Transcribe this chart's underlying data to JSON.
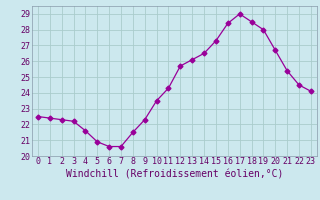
{
  "x": [
    0,
    1,
    2,
    3,
    4,
    5,
    6,
    7,
    8,
    9,
    10,
    11,
    12,
    13,
    14,
    15,
    16,
    17,
    18,
    19,
    20,
    21,
    22,
    23
  ],
  "y": [
    22.5,
    22.4,
    22.3,
    22.2,
    21.6,
    20.9,
    20.6,
    20.6,
    21.5,
    22.3,
    23.5,
    24.3,
    25.7,
    26.1,
    26.5,
    27.3,
    28.4,
    29.0,
    28.5,
    28.0,
    26.7,
    25.4,
    24.5,
    24.1
  ],
  "line_color": "#990099",
  "marker": "D",
  "markersize": 2.5,
  "bg_color": "#cce8ee",
  "grid_color": "#aacccc",
  "xlabel": "Windchill (Refroidissement éolien,°C)",
  "ylim": [
    20,
    29.5
  ],
  "xlim": [
    -0.5,
    23.5
  ],
  "yticks": [
    20,
    21,
    22,
    23,
    24,
    25,
    26,
    27,
    28,
    29
  ],
  "xticks": [
    0,
    1,
    2,
    3,
    4,
    5,
    6,
    7,
    8,
    9,
    10,
    11,
    12,
    13,
    14,
    15,
    16,
    17,
    18,
    19,
    20,
    21,
    22,
    23
  ],
  "tick_fontsize": 6,
  "xlabel_fontsize": 7,
  "tick_color": "#660066",
  "spine_color": "#8899aa"
}
